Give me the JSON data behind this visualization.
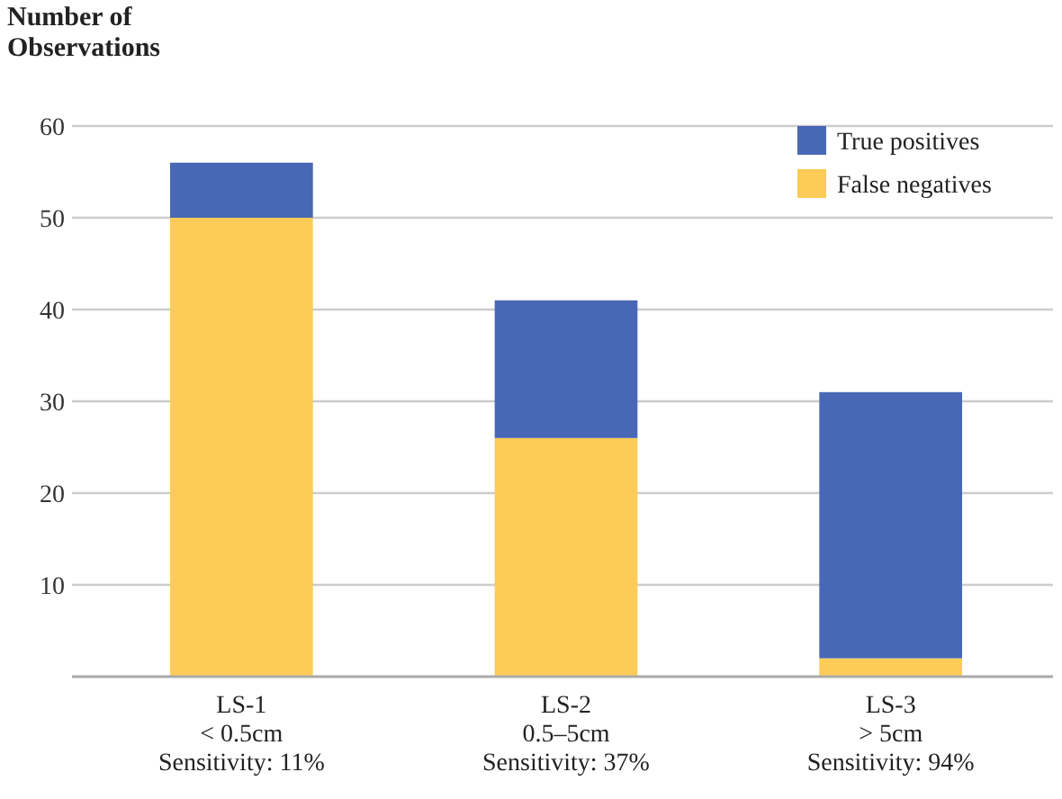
{
  "chart_data": {
    "type": "bar",
    "ylabel": "Number of\nObservations",
    "categories": [
      "LS-1\n< 0.5cm\nSensitivity: 11%",
      "LS-2\n0.5–5cm\nSensitivity: 37%",
      "LS-3\n> 5cm\nSensitivity: 94%"
    ],
    "stacked": true,
    "series": [
      {
        "name": "False negatives",
        "color": "#fdcb58",
        "values": [
          50,
          26,
          2
        ]
      },
      {
        "name": "True positives",
        "color": "#4868b5",
        "values": [
          6,
          15,
          29
        ]
      }
    ],
    "ylim": [
      0,
      60
    ],
    "yticks": [
      10,
      20,
      30,
      40,
      50,
      60
    ],
    "grid": "y",
    "legend": "top right"
  }
}
